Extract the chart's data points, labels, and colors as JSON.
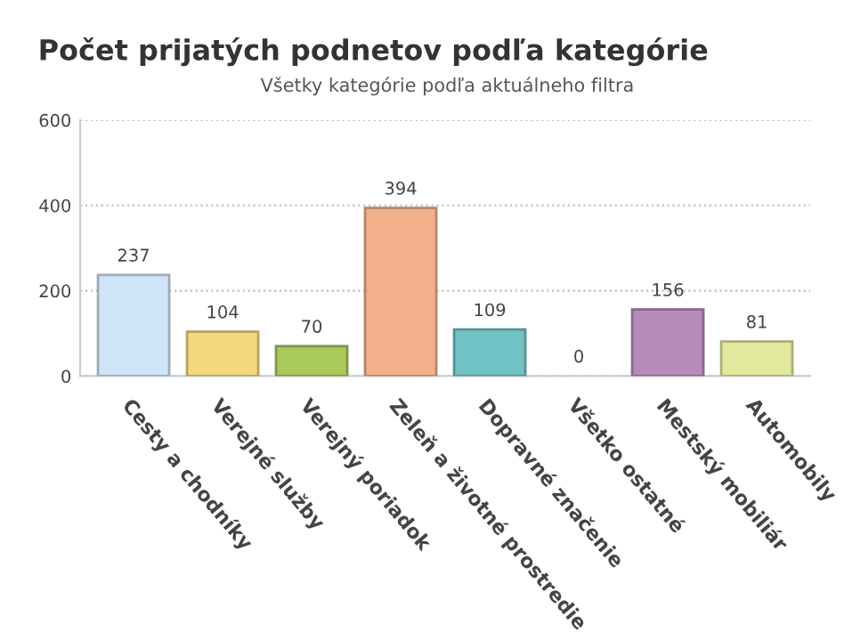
{
  "chart_data": {
    "type": "bar",
    "title": "Počet prijatých podnetov podľa kategórie",
    "subtitle": "Všetky kategórie podľa aktuálneho filtra",
    "categories": [
      "Cesty a chodníky",
      "Verejné služby",
      "Verejný poriadok",
      "Zeleň a životné prostredie",
      "Dopravné značenie",
      "Všetko ostatné",
      "Mestský mobiliár",
      "Automobily"
    ],
    "values": [
      237,
      104,
      70,
      394,
      109,
      0,
      156,
      81
    ],
    "colors": [
      "#cfe5f7",
      "#f6d87c",
      "#a9c95b",
      "#f1b08a",
      "#71c2c5",
      "#d0d0d0",
      "#b78bb9",
      "#e2e89c"
    ],
    "ylim": [
      0,
      600
    ],
    "yticks": [
      0,
      200,
      400,
      600
    ],
    "grid": "y",
    "data_labels": true
  }
}
